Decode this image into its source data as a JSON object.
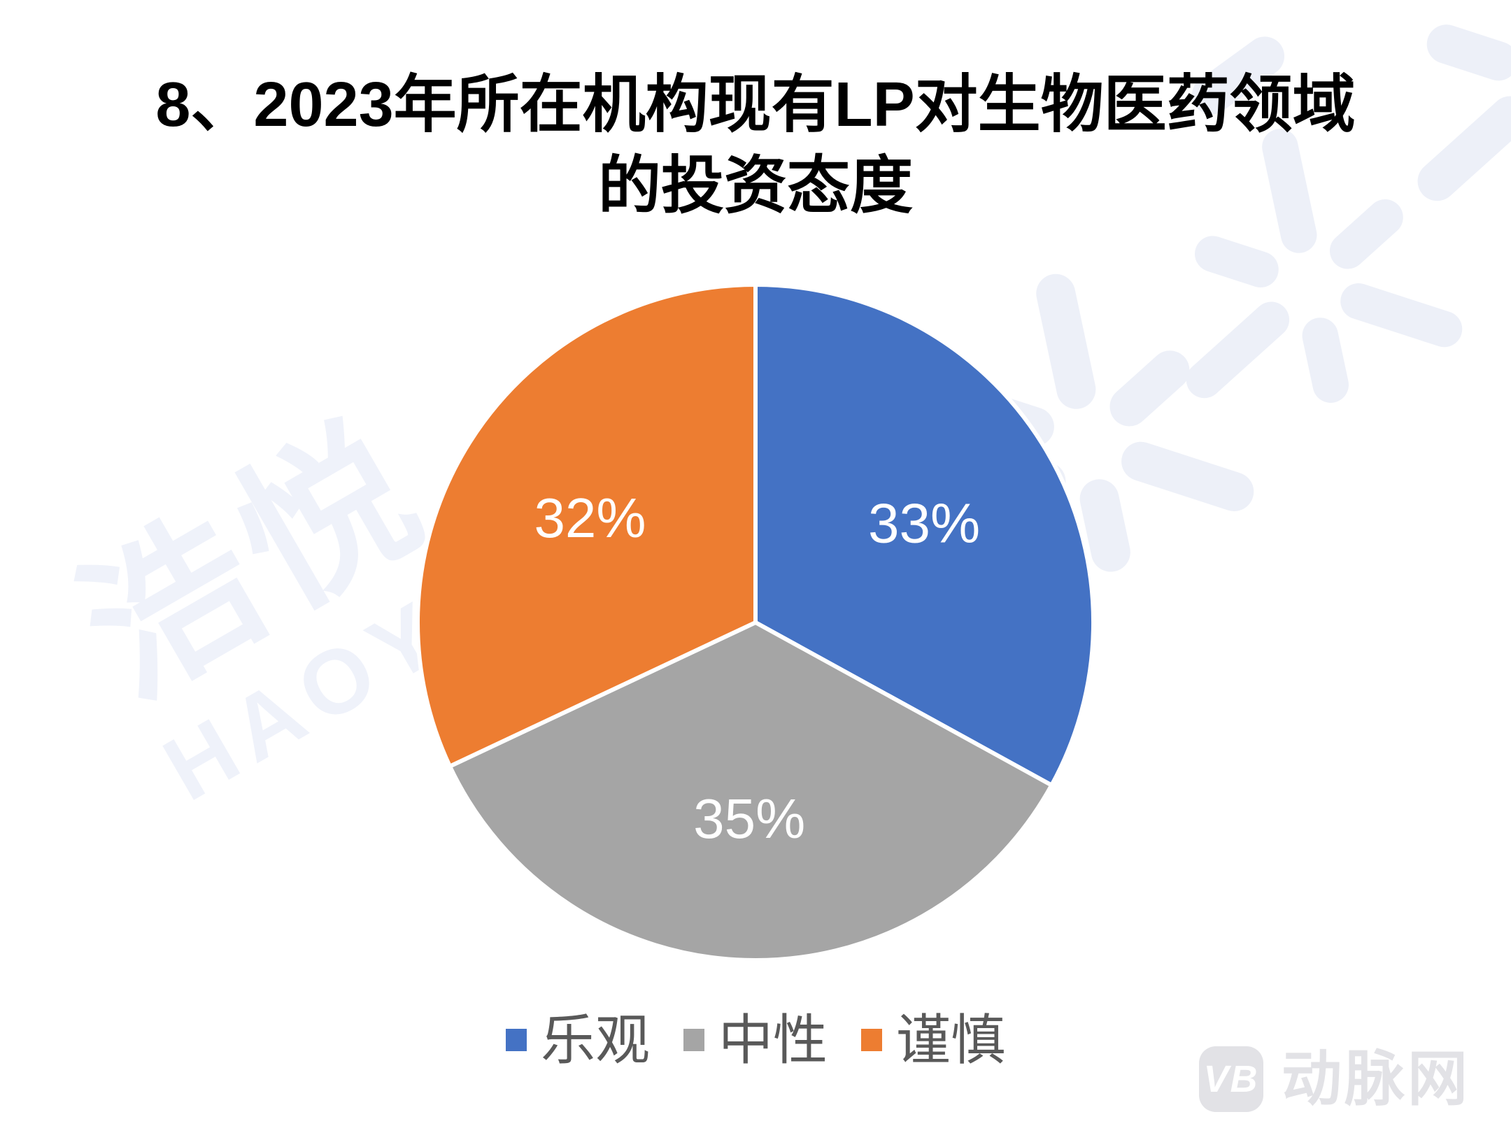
{
  "page": {
    "background": "#FFFFFF"
  },
  "chart_data": {
    "type": "pie",
    "title": "8、2023年所在机构现有LP对生物医药领域的投资态度",
    "title_lines": [
      "8、2023年所在机构现有LP对生物医药领域",
      "的投资态度"
    ],
    "categories": [
      "乐观",
      "中性",
      "谨慎"
    ],
    "values": [
      33,
      35,
      32
    ],
    "data_labels": [
      "33%",
      "35%",
      "32%"
    ],
    "colors": [
      "#4472C4",
      "#A5A5A5",
      "#ED7D31"
    ],
    "start_angle_deg": 0,
    "direction": "clockwise",
    "legend_position": "bottom",
    "data_label_color": "#FFFFFF",
    "slice_border_color": "#FFFFFF",
    "legend_text_color": "#595959",
    "title_color": "#000000"
  },
  "watermarks": {
    "haoyue": {
      "cn": "浩悦",
      "en": "HAOYUE",
      "text_color": "#EFF2FA"
    },
    "mark_color": "#EDF0F8",
    "vb": {
      "badge": "VB",
      "name": "动脉网",
      "color": "#E2E2E6"
    }
  }
}
